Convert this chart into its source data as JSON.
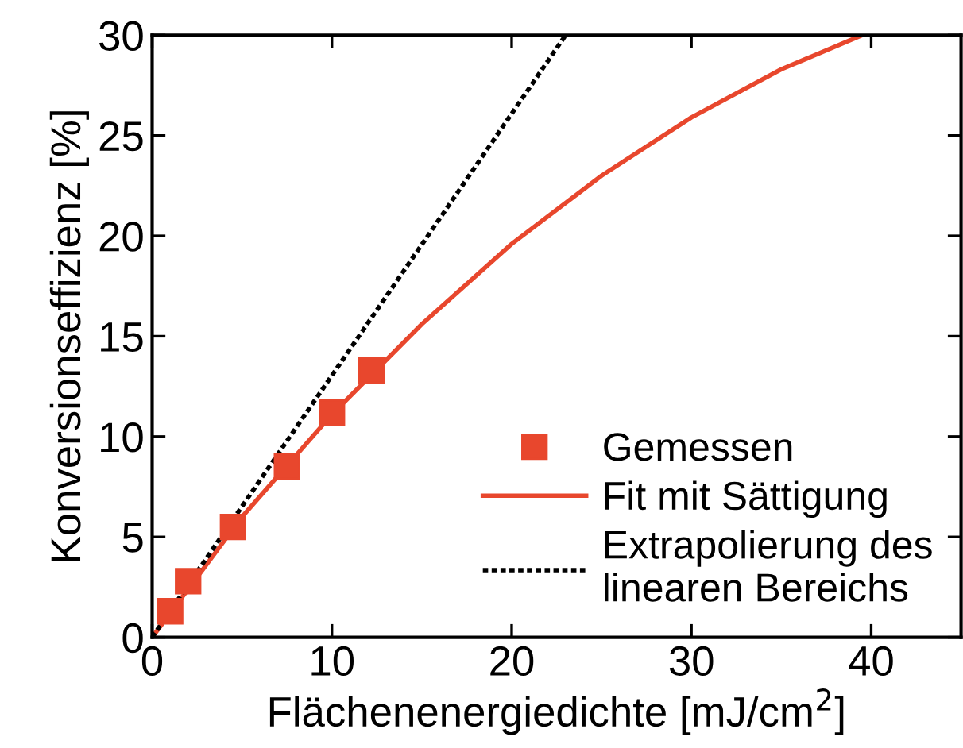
{
  "chart_data": {
    "type": "line",
    "xlabel": "Flächenenergiedichte [mJ/cm$^{2}$]",
    "ylabel": "Konversionseffizienz [%]",
    "xlim": [
      0,
      45
    ],
    "ylim": [
      0,
      30
    ],
    "xticks": [
      0,
      10,
      20,
      30,
      40
    ],
    "yticks": [
      0,
      5,
      10,
      15,
      20,
      25,
      30
    ],
    "grid": false,
    "legend": "bottom right",
    "series": [
      {
        "name": "Gemessen",
        "type": "scatter",
        "marker": "square",
        "color": "#e8472d",
        "x": [
          1.0,
          2.0,
          4.5,
          7.5,
          10.0,
          12.2
        ],
        "values": [
          1.3,
          2.8,
          5.5,
          8.5,
          11.2,
          13.3
        ]
      },
      {
        "name": "Fit mit Sättigung",
        "line_style": "solid",
        "color": "#e8472d",
        "x": [
          0,
          5,
          10,
          15,
          20,
          25,
          30,
          35,
          39.5
        ],
        "values": [
          0,
          6.0,
          11.1,
          15.6,
          19.6,
          23.0,
          25.9,
          28.3,
          30
        ]
      },
      {
        "name": "Extrapolierung des\nlinearen Bereichs",
        "line_style": "dotted",
        "color": "#000000",
        "x": [
          0,
          23
        ],
        "values": [
          0,
          30
        ]
      }
    ]
  }
}
